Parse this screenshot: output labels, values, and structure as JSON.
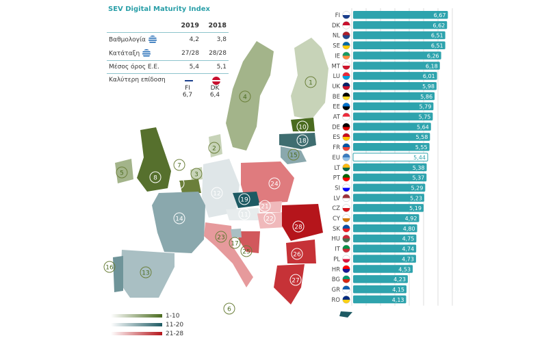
{
  "title": "SEV Digital Maturity Index",
  "info_table": {
    "years": [
      "2019",
      "2018"
    ],
    "rows": [
      {
        "label": "Βαθμολογία",
        "flag": "GR",
        "v2019": "4,2",
        "v2018": "3,8"
      },
      {
        "label": "Κατάταξη",
        "flag": "GR",
        "v2019": "27/28",
        "v2018": "28/28"
      },
      {
        "label": "Μέσος όρος Ε.Ε.",
        "v2019": "5,4",
        "v2018": "5,1"
      },
      {
        "label": "Καλύτερη επίδοση",
        "v2019": "FI\n6,7",
        "v2018": "DK\n6,4",
        "flag2019": "FI",
        "flag2018": "DK"
      }
    ]
  },
  "legend": [
    {
      "label": "1-10",
      "color": "#4a6b1f"
    },
    {
      "label": "11-20",
      "color": "#1d5a63"
    },
    {
      "label": "21-28",
      "color": "#b5151b"
    }
  ],
  "map_ranks": [
    {
      "rank": "1",
      "country": "FI"
    },
    {
      "rank": "2",
      "country": "DK"
    },
    {
      "rank": "3",
      "country": "NL"
    },
    {
      "rank": "4",
      "country": "SE"
    },
    {
      "rank": "5",
      "country": "IE"
    },
    {
      "rank": "6",
      "country": "MT"
    },
    {
      "rank": "7",
      "country": "LU"
    },
    {
      "rank": "8",
      "country": "UK"
    },
    {
      "rank": "9",
      "country": "BE"
    },
    {
      "rank": "10",
      "country": "EE"
    },
    {
      "rank": "11",
      "country": "AT"
    },
    {
      "rank": "12",
      "country": "DE"
    },
    {
      "rank": "13",
      "country": "ES"
    },
    {
      "rank": "14",
      "country": "FR"
    },
    {
      "rank": "15",
      "country": "LT"
    },
    {
      "rank": "16",
      "country": "PT"
    },
    {
      "rank": "17",
      "country": "SI"
    },
    {
      "rank": "18",
      "country": "LV"
    },
    {
      "rank": "19",
      "country": "CZ"
    },
    {
      "rank": "20",
      "country": "CY"
    },
    {
      "rank": "21",
      "country": "SK"
    },
    {
      "rank": "22",
      "country": "HU"
    },
    {
      "rank": "23",
      "country": "IT"
    },
    {
      "rank": "24",
      "country": "PL"
    },
    {
      "rank": "25",
      "country": "HR"
    },
    {
      "rank": "26",
      "country": "BG"
    },
    {
      "rank": "27",
      "country": "GR"
    },
    {
      "rank": "28",
      "country": "RO"
    }
  ],
  "chart_data": {
    "type": "bar",
    "orientation": "horizontal",
    "categories": [
      "FI",
      "DK",
      "NL",
      "SE",
      "IE",
      "MT",
      "LU",
      "UK",
      "BE",
      "EE",
      "AT",
      "DE",
      "ES",
      "FR",
      "EU",
      "LT",
      "PT",
      "SI",
      "LV",
      "CZ",
      "CY",
      "SK",
      "HU",
      "IT",
      "PL",
      "HR",
      "BG",
      "GR",
      "RO"
    ],
    "values": [
      6.67,
      6.62,
      6.51,
      6.51,
      6.26,
      6.18,
      6.01,
      5.98,
      5.86,
      5.79,
      5.75,
      5.64,
      5.58,
      5.55,
      5.44,
      5.38,
      5.37,
      5.29,
      5.23,
      5.19,
      4.92,
      4.8,
      4.75,
      4.74,
      4.73,
      4.53,
      4.23,
      4.15,
      4.13
    ],
    "labels": [
      "6,67",
      "6,62",
      "6,51",
      "6,51",
      "6,26",
      "6,18",
      "6,01",
      "5,98",
      "5,86",
      "5,79",
      "5,75",
      "5,64",
      "5,58",
      "5,55",
      "5,44",
      "5,38",
      "5,37",
      "5,29",
      "5,23",
      "5,19",
      "4,92",
      "4,80",
      "4,75",
      "4,74",
      "4,73",
      "4,53",
      "4,23",
      "4,15",
      "4,13"
    ],
    "highlight": "EU",
    "bar_color": "#2ea3ad",
    "grid": true
  }
}
